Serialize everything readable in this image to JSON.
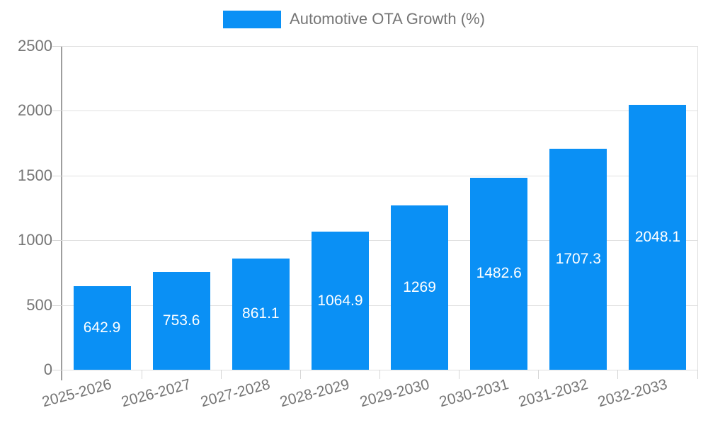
{
  "legend": {
    "label": "Automotive OTA Growth (%)"
  },
  "chart_data": {
    "type": "bar",
    "title": "Automotive OTA Growth (%)",
    "categories": [
      "2025-2026",
      "2026-2027",
      "2027-2028",
      "2028-2029",
      "2029-2030",
      "2030-2031",
      "2031-2032",
      "2032-2033"
    ],
    "values": [
      642.9,
      753.6,
      861.1,
      1064.9,
      1269,
      1482.6,
      1707.3,
      2048.1
    ],
    "value_labels": [
      "642.9",
      "753.6",
      "861.1",
      "1064.9",
      "1269",
      "1482.6",
      "1707.3",
      "2048.1"
    ],
    "xlabel": "",
    "ylabel": "",
    "ylim": [
      0,
      2500
    ],
    "yticks": [
      0,
      500,
      1000,
      1500,
      2000,
      2500
    ],
    "ytick_labels": [
      "0",
      "500",
      "1000",
      "1500",
      "2000",
      "2500"
    ],
    "grid": true,
    "legend_position": "top-center",
    "x_tick_rotation_deg": -15,
    "colors": {
      "bar": "#0a90f5",
      "axis_text": "#757575",
      "value_label": "#ffffff",
      "gridline": "#e0e0e0",
      "axis_line": "#9e9e9e",
      "tick": "#d6d6d6",
      "background": "#ffffff"
    }
  }
}
